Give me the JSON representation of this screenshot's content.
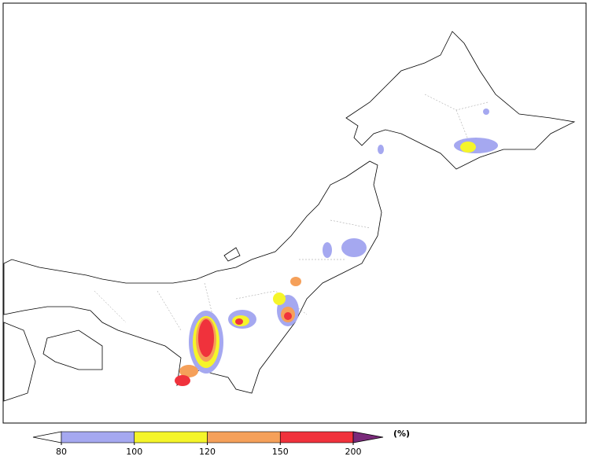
{
  "colorbar": {
    "ticks": [
      80,
      100,
      120,
      150,
      200
    ],
    "colors": [
      "#a5a8f0",
      "#f5f52a",
      "#f5a05a",
      "#f0323c"
    ],
    "under_color": "#ffffff",
    "over_color": "#7a2a7a",
    "unit": "(%)"
  }
}
